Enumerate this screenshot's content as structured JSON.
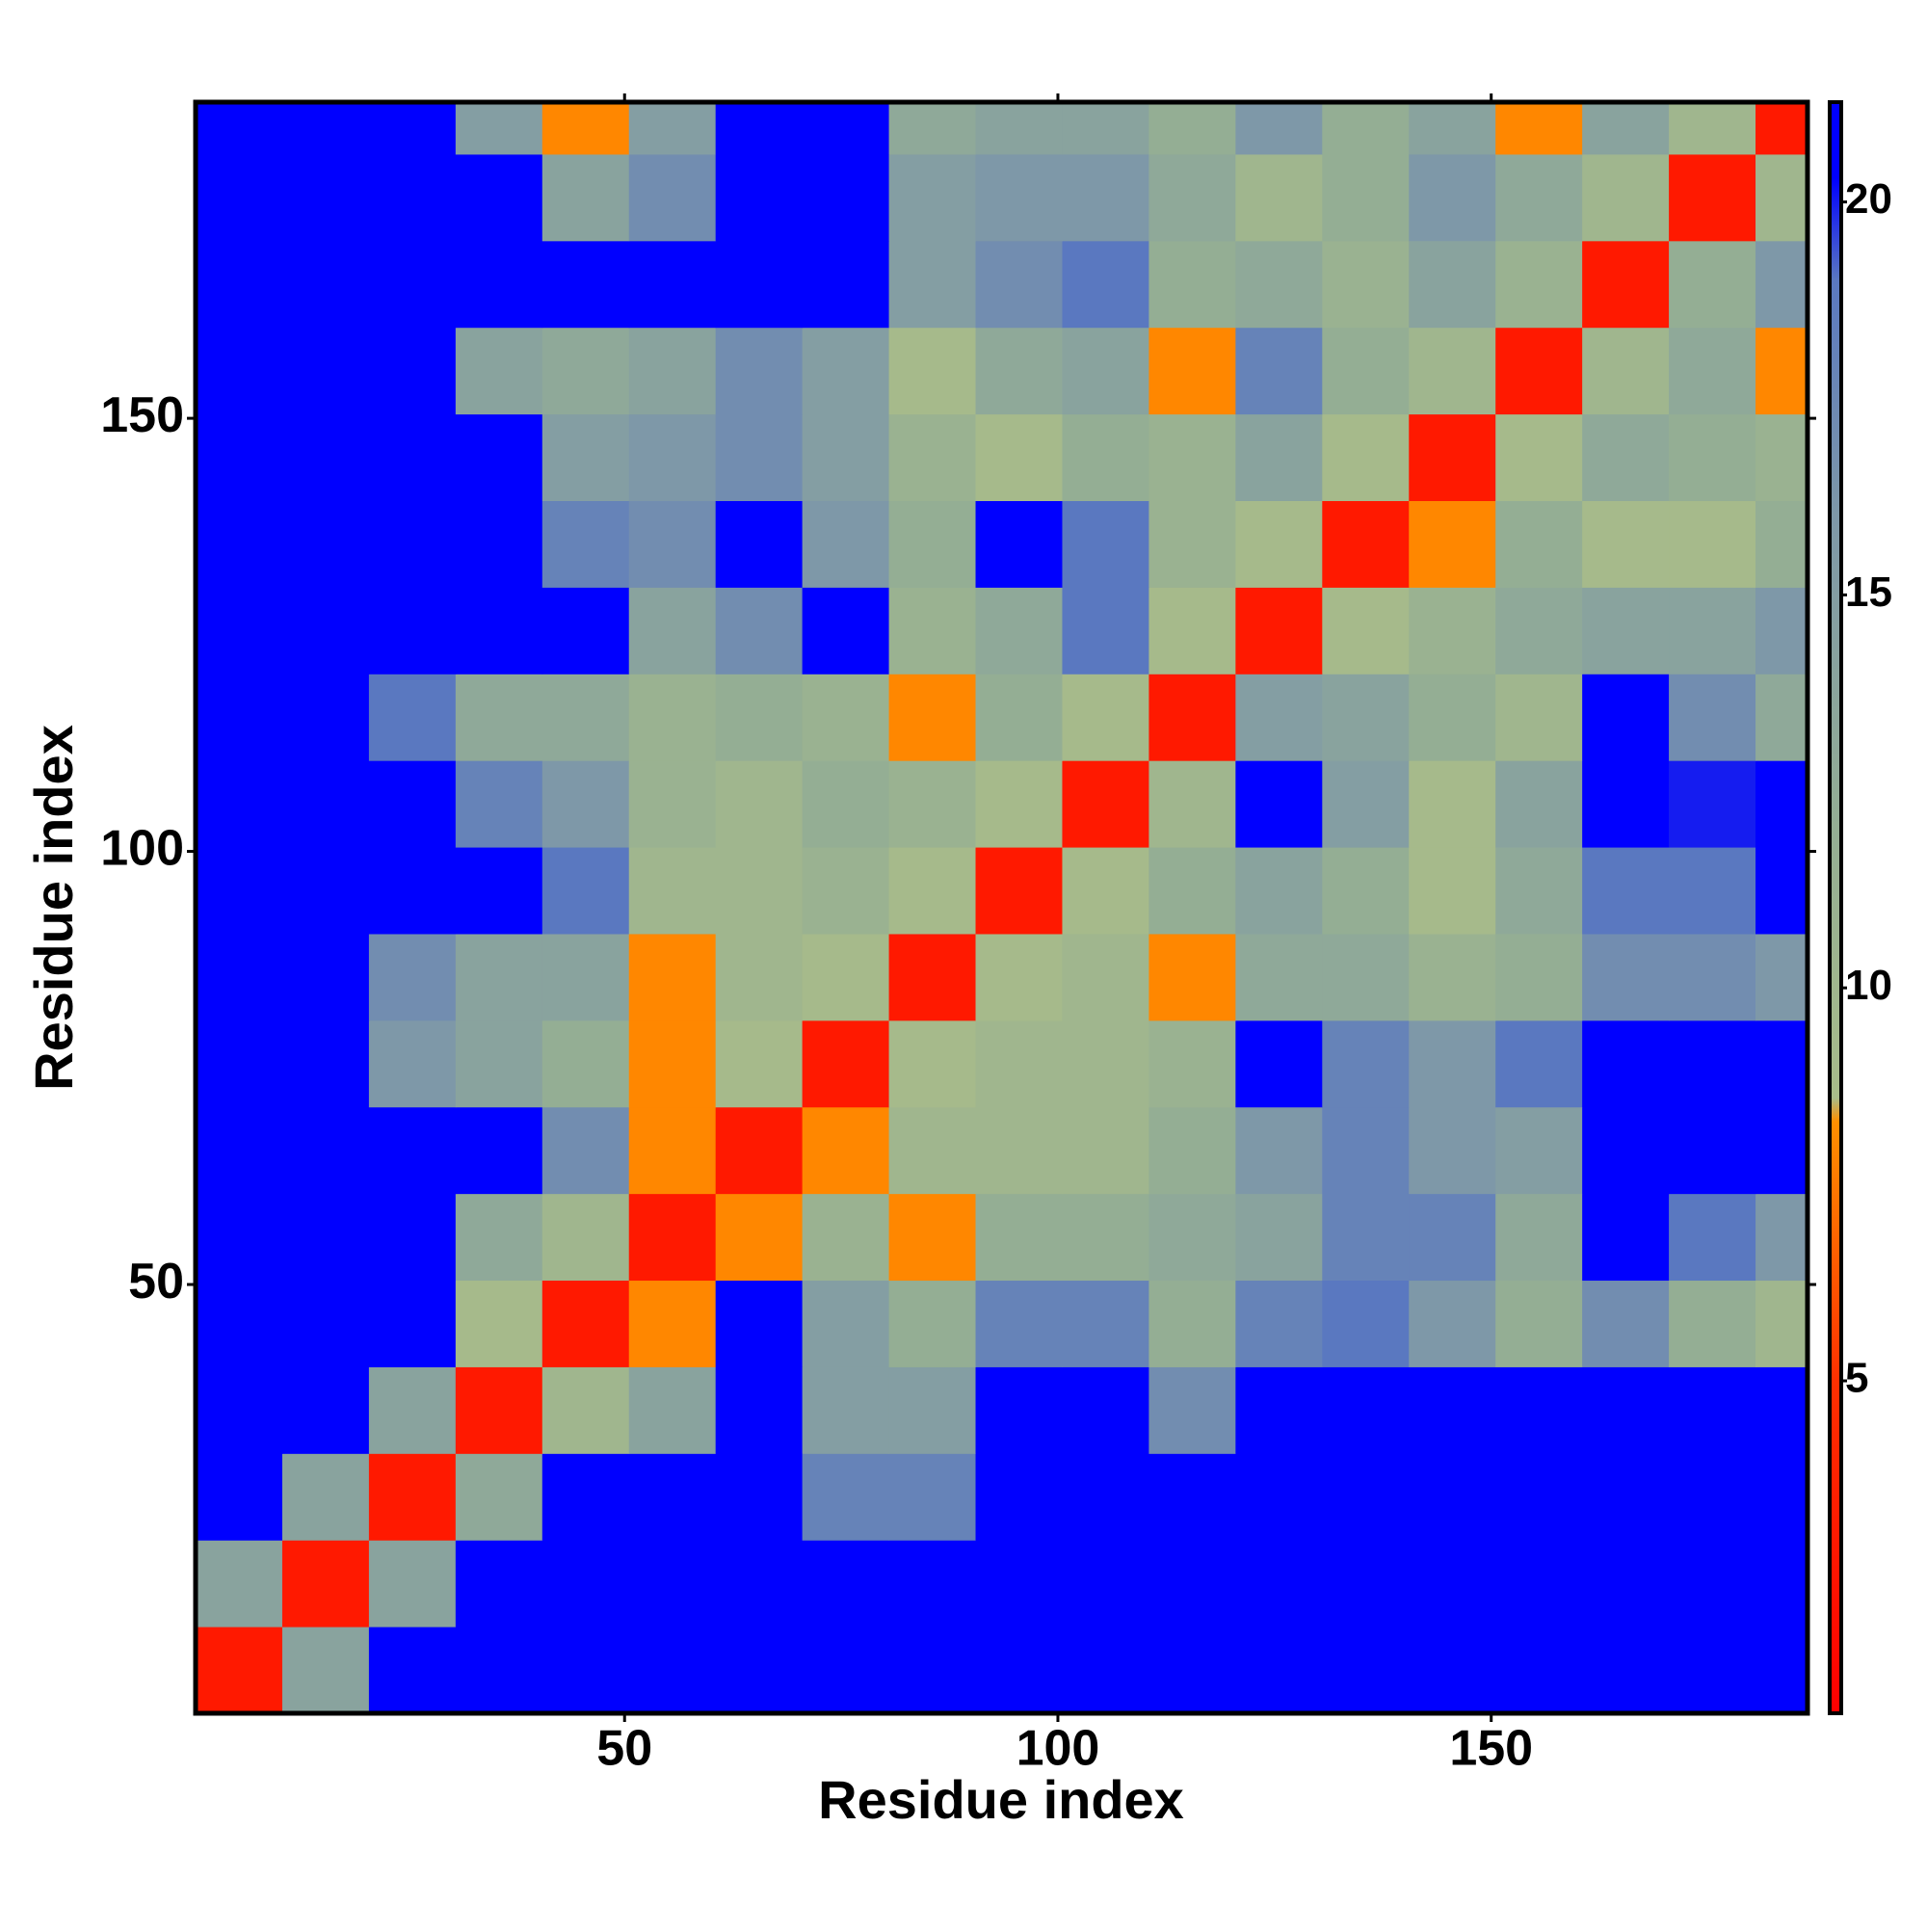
{
  "chart_data": {
    "type": "heatmap",
    "xlabel": "Residue index",
    "ylabel": "Residue index",
    "xbins": [
      0.5,
      10.5,
      20.5,
      30.5,
      40.5,
      50.5,
      60.5,
      70.5,
      80.5,
      90.5,
      100.5,
      110.5,
      120.5,
      130.5,
      140.5,
      150.5,
      160.5,
      170.5,
      180.5,
      186.5
    ],
    "ybins": [
      0.5,
      10.5,
      20.5,
      30.5,
      40.5,
      50.5,
      60.5,
      70.5,
      80.5,
      90.5,
      100.5,
      110.5,
      120.5,
      130.5,
      140.5,
      150.5,
      160.5,
      170.5,
      180.5,
      186.5
    ],
    "xlim": [
      0.5,
      186.5
    ],
    "ylim": [
      0.5,
      186.5
    ],
    "xticks": [
      50,
      100,
      150
    ],
    "yticks": [
      50,
      100,
      150
    ],
    "zlim": [
      0.77,
      21.27
    ],
    "zticks": [
      5,
      10,
      15,
      20
    ],
    "colorscale": [
      [
        0.77,
        "#ff0000"
      ],
      [
        5,
        "#ff3000"
      ],
      [
        8.3,
        "#ff9000"
      ],
      [
        8.6,
        "#a8bc8a"
      ],
      [
        12,
        "#94ae94"
      ],
      [
        16,
        "#7e98a8"
      ],
      [
        19,
        "#5a78c0"
      ],
      [
        20.3,
        "#0000ff"
      ],
      [
        21.27,
        "#0000ff"
      ]
    ],
    "z": [
      [
        3,
        14,
        21,
        21,
        21,
        21,
        21,
        21,
        21,
        21,
        21,
        21,
        21,
        21,
        21,
        21,
        21,
        21,
        21
      ],
      [
        14,
        3,
        14,
        21,
        21,
        21,
        21,
        21,
        21,
        21,
        21,
        21,
        21,
        21,
        21,
        21,
        21,
        21,
        21
      ],
      [
        21,
        14,
        3,
        13,
        21,
        21,
        21,
        18,
        18,
        21,
        21,
        21,
        21,
        21,
        21,
        21,
        21,
        21,
        21
      ],
      [
        21,
        21,
        14,
        3,
        10,
        14,
        21,
        15,
        15,
        21,
        21,
        17,
        21,
        21,
        21,
        21,
        21,
        21,
        21
      ],
      [
        21,
        21,
        21,
        9,
        3,
        8,
        21,
        15,
        12,
        18,
        18,
        12,
        18,
        19,
        16,
        12,
        17,
        12,
        10
      ],
      [
        21,
        21,
        21,
        13,
        10,
        3,
        8,
        11,
        8,
        12,
        12,
        13,
        14,
        18,
        18,
        13,
        21,
        19,
        16
      ],
      [
        21,
        21,
        21,
        21,
        17,
        8,
        3,
        8,
        10,
        10,
        10,
        12,
        16,
        18,
        16,
        15,
        21,
        21,
        21
      ],
      [
        21,
        21,
        16,
        14,
        12,
        8,
        9,
        3,
        9,
        10,
        10,
        11,
        21,
        18,
        16,
        19,
        21,
        21,
        21
      ],
      [
        21,
        21,
        17,
        14,
        14,
        8,
        10,
        9,
        3,
        9,
        10,
        8,
        13,
        13,
        11,
        12,
        17,
        17,
        16
      ],
      [
        21,
        21,
        21,
        21,
        19,
        10,
        10,
        11,
        9,
        3,
        9,
        12,
        14,
        12,
        9,
        13,
        19,
        19,
        21
      ],
      [
        21,
        21,
        21,
        18,
        16,
        11,
        10,
        12,
        11,
        9,
        3,
        10,
        21,
        15,
        9,
        14,
        21,
        20,
        21
      ],
      [
        21,
        21,
        19,
        13,
        13,
        11,
        12,
        11,
        8,
        12,
        9,
        3,
        15,
        14,
        12,
        10,
        21,
        17,
        13
      ],
      [
        21,
        21,
        21,
        21,
        21,
        14,
        17,
        21,
        11,
        13,
        19,
        9,
        3,
        9,
        11,
        13,
        14,
        14,
        16
      ],
      [
        21,
        21,
        21,
        21,
        18,
        17,
        21,
        16,
        12,
        21,
        19,
        11,
        9,
        3,
        8,
        12,
        9,
        9,
        12
      ],
      [
        21,
        21,
        21,
        21,
        15,
        16,
        17,
        15,
        11,
        9,
        12,
        11,
        14,
        9,
        3,
        9,
        13,
        12,
        11
      ],
      [
        21,
        21,
        21,
        14,
        13,
        14,
        17,
        15,
        9,
        13,
        14,
        8,
        18,
        12,
        10,
        3,
        10,
        13,
        8
      ],
      [
        21,
        21,
        21,
        21,
        21,
        21,
        21,
        21,
        15,
        17,
        19,
        12,
        13,
        11,
        14,
        11,
        3,
        12,
        16
      ],
      [
        21,
        21,
        21,
        21,
        14,
        17,
        21,
        21,
        15,
        16,
        16,
        13,
        10,
        12,
        16,
        13,
        10,
        3,
        10
      ],
      [
        21,
        21,
        21,
        15,
        8,
        15,
        21,
        21,
        13,
        14,
        14,
        12,
        16,
        12,
        14,
        8,
        14,
        10,
        3
      ]
    ]
  }
}
